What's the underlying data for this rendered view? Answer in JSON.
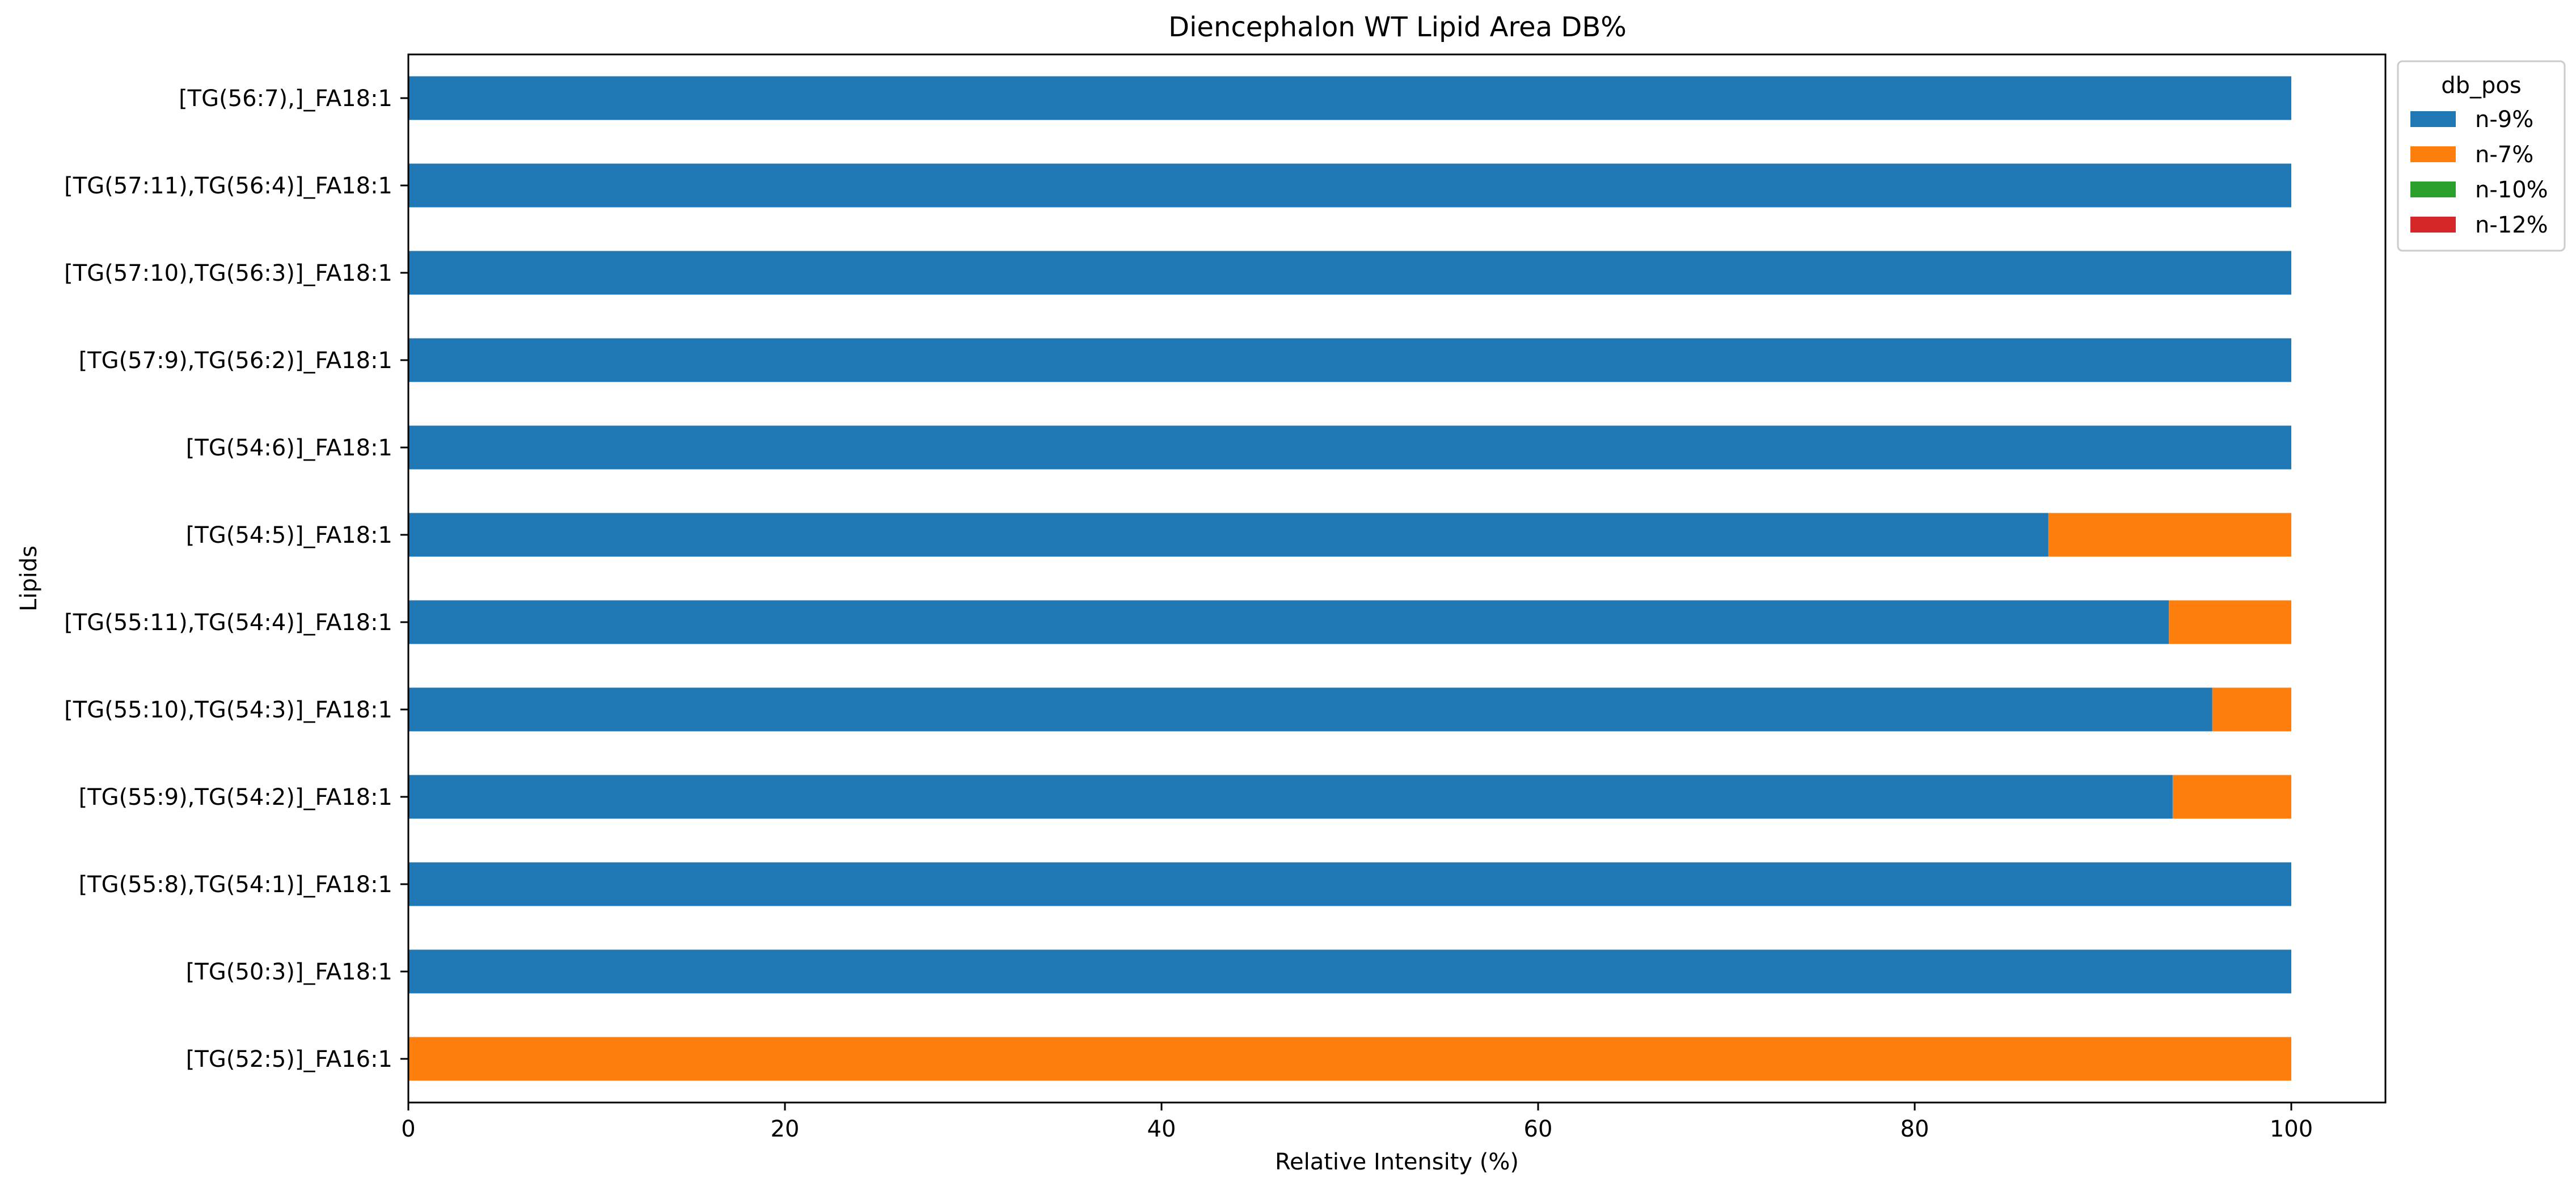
{
  "chart_data": {
    "type": "bar",
    "orientation": "horizontal",
    "stacked": true,
    "title": "Diencephalon WT Lipid Area DB%",
    "xlabel": "Relative Intensity (%)",
    "ylabel": "Lipids",
    "xlim": [
      0,
      105
    ],
    "xticks": [
      "0",
      "20",
      "40",
      "60",
      "80",
      "100"
    ],
    "grid": false,
    "legend": {
      "title": "db_pos",
      "placement": "top-right, outside plot"
    },
    "categories": [
      "[TG(52:5)]_FA16:1",
      "[TG(50:3)]_FA18:1",
      "[TG(55:8),TG(54:1)]_FA18:1",
      "[TG(55:9),TG(54:2)]_FA18:1",
      "[TG(55:10),TG(54:3)]_FA18:1",
      "[TG(55:11),TG(54:4)]_FA18:1",
      "[TG(54:5)]_FA18:1",
      "[TG(54:6)]_FA18:1",
      "[TG(57:9),TG(56:2)]_FA18:1",
      "[TG(57:10),TG(56:3)]_FA18:1",
      "[TG(57:11),TG(56:4)]_FA18:1",
      "[TG(56:7),]_FA18:1"
    ],
    "series": [
      {
        "name": "n-9%",
        "color": "#1f77b4",
        "values": [
          0,
          100,
          100,
          93.7,
          95.8,
          93.5,
          87.1,
          100,
          100,
          100,
          100,
          100
        ]
      },
      {
        "name": "n-7%",
        "color": "#ff7f0e",
        "values": [
          100,
          0,
          0,
          6.3,
          4.2,
          6.5,
          12.9,
          0,
          0,
          0,
          0,
          0
        ]
      },
      {
        "name": "n-10%",
        "color": "#2ca02c",
        "values": [
          0,
          0,
          0,
          0,
          0,
          0,
          0,
          0,
          0,
          0,
          0,
          0
        ]
      },
      {
        "name": "n-12%",
        "color": "#d62728",
        "values": [
          0,
          0,
          0,
          0,
          0,
          0,
          0,
          0,
          0,
          0,
          0,
          0
        ]
      }
    ]
  }
}
